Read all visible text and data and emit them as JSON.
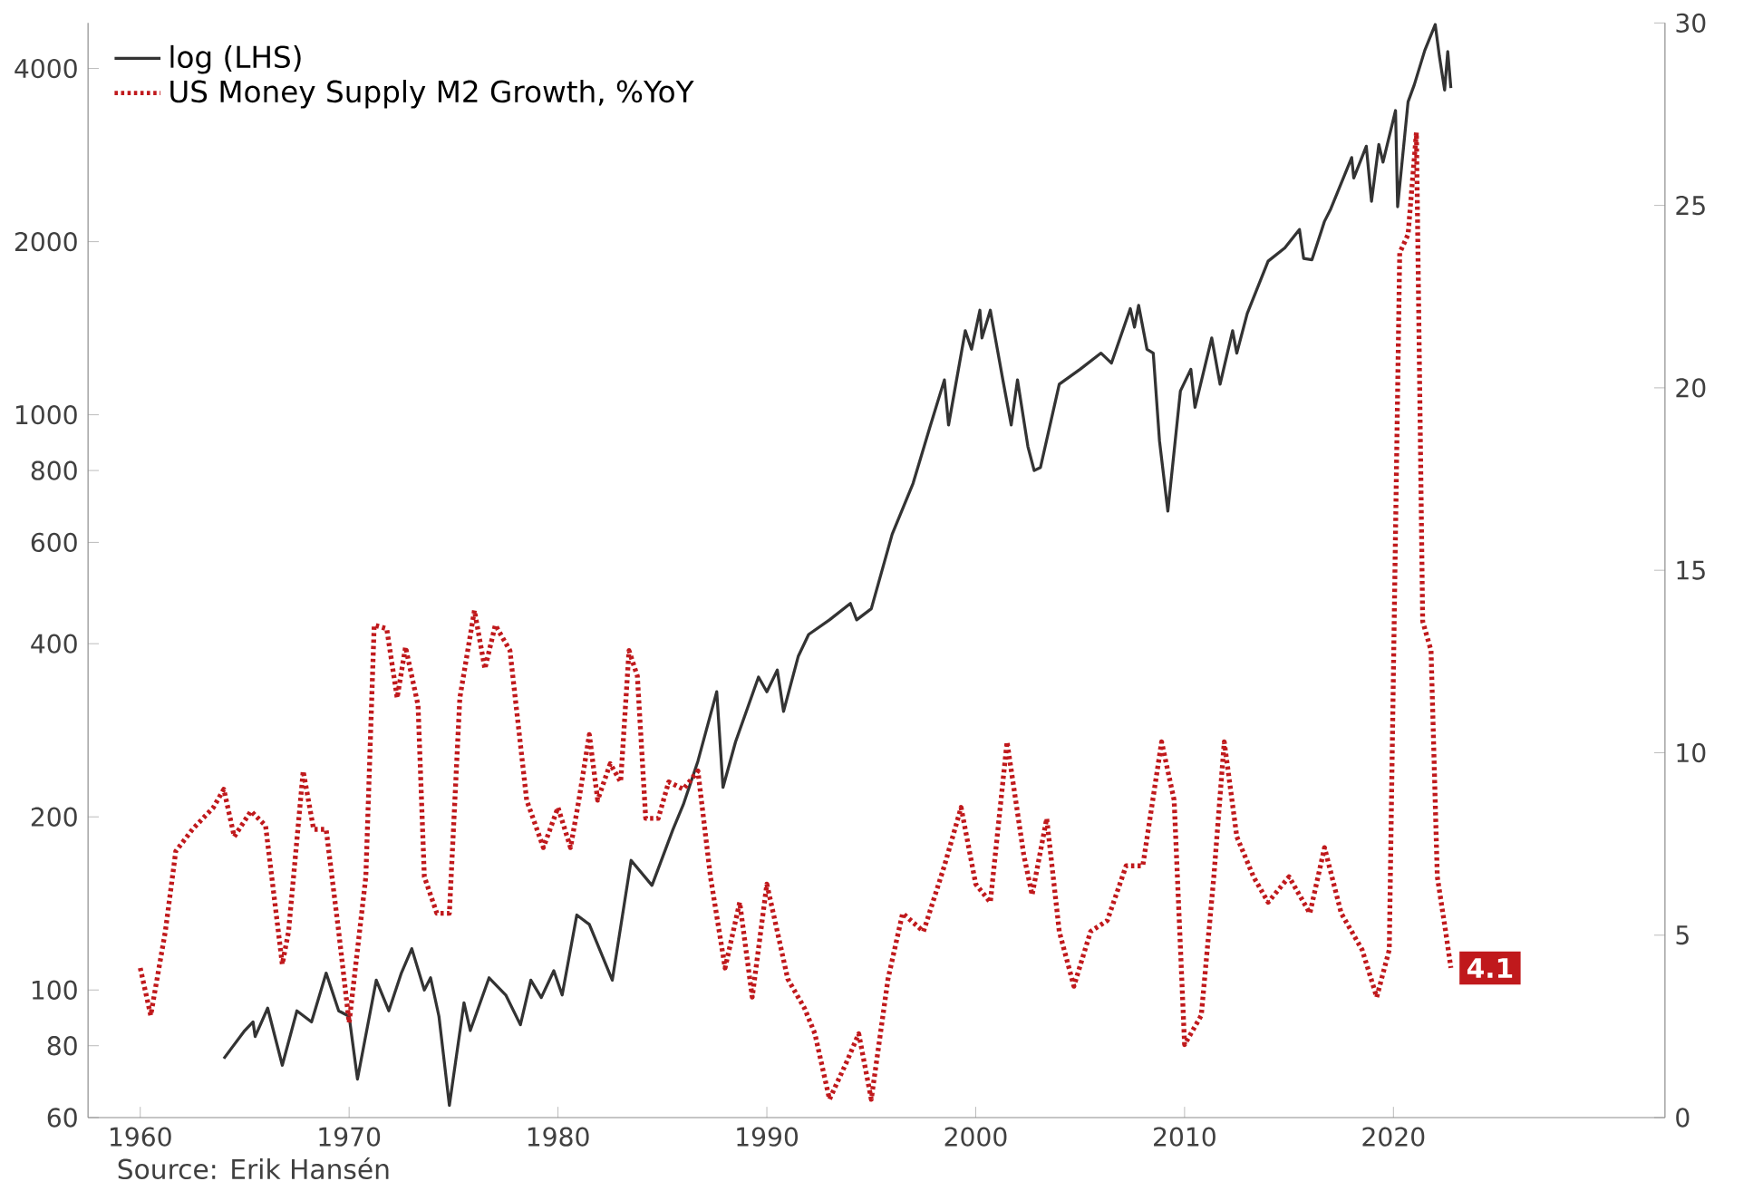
{
  "chart_data": {
    "type": "line",
    "annotations": [
      "Source: Erik Hansén"
    ],
    "legend": "top left",
    "log": "y",
    "grid": false,
    "xlim": [
      1957.5,
      2033
    ],
    "xticks": [
      1960,
      1970,
      1980,
      1990,
      2000,
      2010,
      2020
    ],
    "ylim": [
      60,
      4800
    ],
    "yticks": [
      60,
      80,
      100,
      200,
      400,
      600,
      800,
      1000,
      2000,
      4000
    ],
    "y2lim": [
      0,
      30
    ],
    "y2ticks": [
      0,
      5,
      10,
      15,
      20,
      25,
      30
    ],
    "series": [
      {
        "name": "log (LHS)",
        "color": "#333333",
        "line_style": "solid",
        "x": [
          1964.0,
          1965.0,
          1965.4,
          1965.5,
          1966.1,
          1966.8,
          1967.5,
          1968.2,
          1968.9,
          1969.5,
          1970.0,
          1970.4,
          1971.3,
          1971.9,
          1972.5,
          1973.0,
          1973.6,
          1973.9,
          1974.3,
          1974.8,
          1975.5,
          1975.8,
          1976.7,
          1977.5,
          1978.2,
          1978.7,
          1979.2,
          1979.8,
          1980.2,
          1980.9,
          1981.5,
          1982.6,
          1983.5,
          1984.5,
          1985.5,
          1986.0,
          1986.7,
          1987.6,
          1987.9,
          1988.5,
          1989.6,
          1990.0,
          1990.5,
          1990.8,
          1991.5,
          1992.0,
          1993.0,
          1994.0,
          1994.3,
          1995.0,
          1996.0,
          1997.0,
          1997.8,
          1998.5,
          1998.7,
          1999.5,
          1999.8,
          2000.2,
          2000.3,
          2000.7,
          2001.3,
          2001.7,
          2002.0,
          2002.5,
          2002.8,
          2003.1,
          2004.0,
          2005.0,
          2006.0,
          2006.5,
          2007.4,
          2007.6,
          2007.8,
          2008.2,
          2008.5,
          2008.8,
          2009.2,
          2009.8,
          2010.3,
          2010.5,
          2011.3,
          2011.7,
          2012.3,
          2012.5,
          2013.0,
          2014.0,
          2014.8,
          2015.5,
          2015.7,
          2016.1,
          2016.7,
          2017.0,
          2018.0,
          2018.1,
          2018.7,
          2018.95,
          2019.3,
          2019.5,
          2020.1,
          2020.2,
          2020.7,
          2021.0,
          2021.5,
          2022.0,
          2022.2,
          2022.45,
          2022.6,
          2022.75
        ],
        "values": [
          76,
          85,
          88,
          83,
          93,
          74,
          92,
          88,
          107,
          92,
          90,
          70,
          104,
          92,
          107,
          118,
          100,
          105,
          90,
          63,
          95,
          85,
          105,
          98,
          87,
          104,
          97,
          108,
          98,
          135,
          130,
          104,
          168,
          152,
          190,
          210,
          250,
          330,
          225,
          270,
          350,
          330,
          360,
          305,
          380,
          415,
          440,
          470,
          440,
          460,
          620,
          760,
          950,
          1150,
          960,
          1400,
          1300,
          1520,
          1360,
          1520,
          1150,
          960,
          1150,
          880,
          800,
          810,
          1130,
          1200,
          1280,
          1230,
          1530,
          1420,
          1550,
          1300,
          1280,
          900,
          680,
          1100,
          1200,
          1030,
          1360,
          1130,
          1400,
          1280,
          1500,
          1850,
          1950,
          2100,
          1870,
          1860,
          2170,
          2280,
          2800,
          2580,
          2930,
          2350,
          2950,
          2750,
          3380,
          2300,
          3500,
          3750,
          4300,
          4770,
          4200,
          3670,
          4280,
          3700
        ]
      },
      {
        "name": "US Money Supply M2 Growth, %YoY",
        "color": "#c0191c",
        "line_style": "dotted",
        "axis": "y2",
        "x": [
          1960.0,
          1960.5,
          1961.2,
          1961.7,
          1962.5,
          1963.5,
          1964.0,
          1964.5,
          1965.3,
          1966.0,
          1966.8,
          1967.1,
          1967.8,
          1968.3,
          1968.9,
          1969.5,
          1970.0,
          1970.8,
          1971.2,
          1971.8,
          1972.3,
          1972.7,
          1973.3,
          1973.6,
          1974.2,
          1974.8,
          1975.3,
          1976.0,
          1976.5,
          1977.0,
          1977.7,
          1978.5,
          1979.3,
          1980.0,
          1980.6,
          1981.0,
          1981.5,
          1981.9,
          1982.5,
          1983.0,
          1983.4,
          1983.8,
          1984.2,
          1984.8,
          1985.3,
          1986.0,
          1986.7,
          1987.3,
          1988.0,
          1988.7,
          1989.3,
          1990.0,
          1990.5,
          1991.0,
          1991.8,
          1992.3,
          1993.0,
          1993.8,
          1994.4,
          1995.0,
          1995.8,
          1996.5,
          1997.5,
          1998.5,
          1999.3,
          2000.0,
          2000.7,
          2001.5,
          2002.3,
          2002.7,
          2003.4,
          2004.0,
          2004.7,
          2005.5,
          2006.3,
          2007.2,
          2008.0,
          2008.9,
          2009.5,
          2010.0,
          2010.8,
          2011.4,
          2011.9,
          2012.5,
          2013.3,
          2014.0,
          2015.0,
          2016.0,
          2016.7,
          2017.5,
          2018.5,
          2019.2,
          2019.8,
          2020.3,
          2020.7,
          2021.1,
          2021.4,
          2021.8,
          2022.1,
          2022.5,
          2022.75
        ],
        "values": [
          4.1,
          2.8,
          5.1,
          7.3,
          7.9,
          8.5,
          9.0,
          7.7,
          8.4,
          8.0,
          4.2,
          5.1,
          9.5,
          7.9,
          7.9,
          5.1,
          2.6,
          6.6,
          13.5,
          13.4,
          11.5,
          12.9,
          11.3,
          6.6,
          5.6,
          5.6,
          11.5,
          13.9,
          12.3,
          13.5,
          12.8,
          8.7,
          7.4,
          8.5,
          7.4,
          8.7,
          10.5,
          8.7,
          9.7,
          9.2,
          12.8,
          12.1,
          8.2,
          8.2,
          9.2,
          9.0,
          9.5,
          6.6,
          4.1,
          5.9,
          3.3,
          6.4,
          5.1,
          3.8,
          3.0,
          2.3,
          0.5,
          1.5,
          2.3,
          0.5,
          3.8,
          5.6,
          5.1,
          6.9,
          8.5,
          6.4,
          5.9,
          10.3,
          7.2,
          6.1,
          8.2,
          5.1,
          3.6,
          5.1,
          5.4,
          6.9,
          6.9,
          10.3,
          8.7,
          2.0,
          2.8,
          6.6,
          10.3,
          7.7,
          6.6,
          5.9,
          6.6,
          5.6,
          7.4,
          5.6,
          4.6,
          3.3,
          4.6,
          23.7,
          24.2,
          27.0,
          13.6,
          12.8,
          6.6,
          5.1,
          4.1
        ],
        "value_labels": [
          null,
          null,
          null,
          null,
          null,
          null,
          null,
          null,
          null,
          null,
          null,
          null,
          null,
          null,
          null,
          null,
          null,
          null,
          null,
          null,
          null,
          null,
          null,
          null,
          null,
          null,
          null,
          null,
          null,
          null,
          null,
          null,
          null,
          null,
          null,
          null,
          null,
          null,
          null,
          null,
          null,
          null,
          null,
          null,
          null,
          null,
          null,
          null,
          null,
          null,
          null,
          null,
          null,
          null,
          null,
          null,
          null,
          null,
          null,
          null,
          null,
          null,
          null,
          null,
          null,
          null,
          null,
          null,
          null,
          null,
          null,
          null,
          null,
          null,
          null,
          null,
          null,
          null,
          null,
          null,
          null,
          null,
          null,
          null,
          null,
          null,
          null,
          null,
          null,
          null,
          null,
          null,
          null,
          null,
          null,
          null,
          null,
          null,
          null,
          null,
          "4.1"
        ]
      }
    ]
  }
}
